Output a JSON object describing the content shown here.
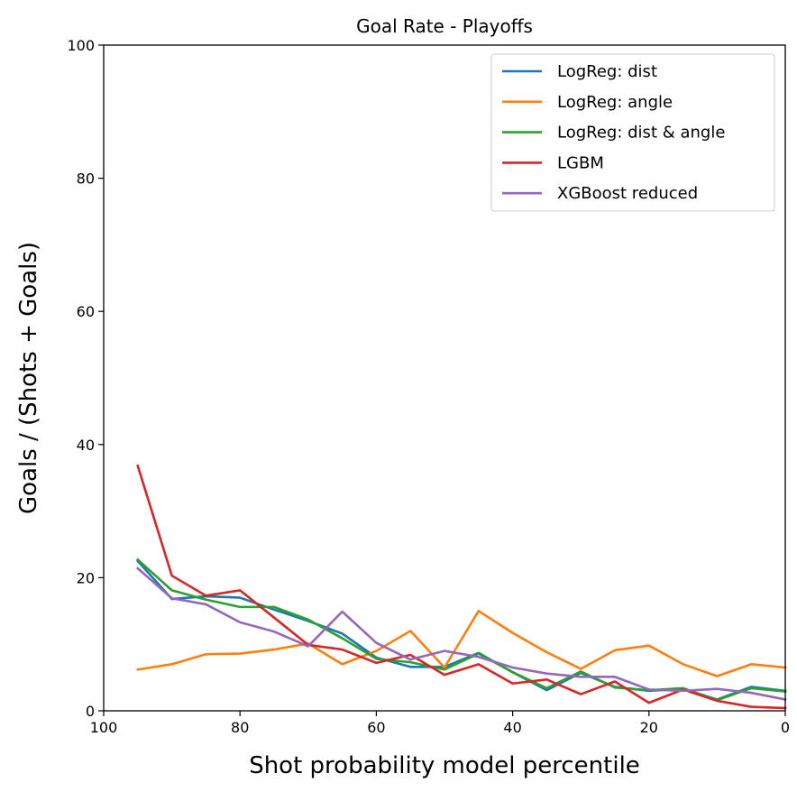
{
  "chart_data": {
    "type": "line",
    "title": "Goal Rate - Playoffs",
    "xlabel": "Shot probability model percentile",
    "ylabel": "Goals / (Shots + Goals)",
    "xlim": [
      100,
      0
    ],
    "ylim": [
      0,
      100
    ],
    "xticks": [
      "100",
      "80",
      "60",
      "40",
      "20",
      "0"
    ],
    "yticks": [
      "0",
      "20",
      "40",
      "60",
      "80",
      "100"
    ],
    "legend_position": "top-right",
    "grid": false,
    "x": [
      95,
      90,
      85,
      80,
      75,
      70,
      65,
      60,
      55,
      50,
      45,
      40,
      35,
      30,
      25,
      20,
      15,
      10,
      5,
      0
    ],
    "series": [
      {
        "name": "LogReg: dist",
        "color": "#1f77b4",
        "values": [
          22.5,
          16.8,
          17.2,
          17.0,
          15.2,
          13.5,
          11.6,
          8.0,
          6.6,
          6.6,
          8.7,
          5.8,
          3.1,
          5.7,
          3.6,
          3.0,
          3.3,
          1.7,
          3.6,
          3.0
        ]
      },
      {
        "name": "LogReg: angle",
        "color": "#ff7f0e",
        "values": [
          6.2,
          7.0,
          8.5,
          8.6,
          9.2,
          10.1,
          7.0,
          9.0,
          12.0,
          6.5,
          15.0,
          11.7,
          8.8,
          6.3,
          9.1,
          9.8,
          7.0,
          5.2,
          7.0,
          6.5
        ]
      },
      {
        "name": "LogReg: dist & angle",
        "color": "#2ca02c",
        "values": [
          22.7,
          18.1,
          16.7,
          15.6,
          15.6,
          13.7,
          10.9,
          7.8,
          7.3,
          6.2,
          8.6,
          5.8,
          3.4,
          5.9,
          3.5,
          3.1,
          3.4,
          1.6,
          3.4,
          2.9
        ]
      },
      {
        "name": "LGBM",
        "color": "#d62728",
        "values": [
          36.8,
          20.3,
          17.3,
          18.1,
          14.0,
          9.9,
          9.2,
          7.2,
          8.4,
          5.4,
          7.0,
          4.1,
          4.7,
          2.5,
          4.4,
          1.2,
          3.2,
          1.5,
          0.6,
          0.4
        ]
      },
      {
        "name": "XGBoost reduced",
        "color": "#9467bd",
        "values": [
          21.4,
          16.9,
          16.0,
          13.3,
          11.9,
          9.7,
          14.9,
          10.2,
          7.7,
          9.0,
          8.1,
          6.5,
          5.6,
          5.1,
          5.1,
          3.2,
          3.0,
          3.3,
          2.7,
          1.7
        ]
      }
    ]
  }
}
